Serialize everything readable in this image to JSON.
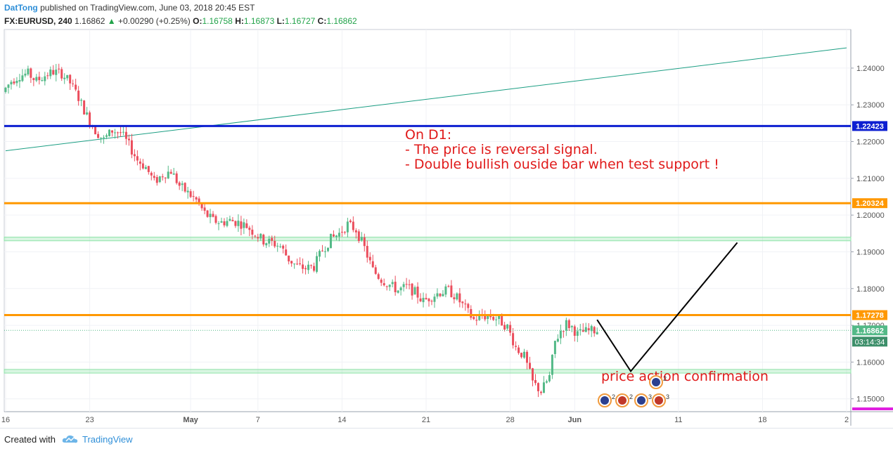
{
  "header": {
    "author": "DatTong",
    "published": "published on TradingView.com, June 03, 2018 20:45 EST",
    "symbol": "FX:EURUSD, 240",
    "price": "1.16862",
    "change": "+0.00290 (+0.25%)",
    "open_label": "O:",
    "open": "1.16758",
    "high_label": "H:",
    "high": "1.16873",
    "low_label": "L:",
    "low": "1.16727",
    "close_label": "C:",
    "close": "1.16862"
  },
  "footer": {
    "created_with": "Created with",
    "brand": "TradingView"
  },
  "colors": {
    "up": "#53b987",
    "down": "#eb4d5c",
    "level_blue": "#0d1fd1",
    "level_orange": "#ff9800",
    "zone_green": "#8fe3a8",
    "trendline": "#1b9e83",
    "annotation": "#e01a1a",
    "projection": "#000000"
  },
  "chart_data": {
    "type": "candlestick",
    "symbol": "FX:EURUSD",
    "timeframe": "240",
    "ylim": [
      1.1465,
      1.2505
    ],
    "y_ticks": [
      1.24,
      1.23,
      1.22,
      1.21,
      1.2,
      1.19,
      1.18,
      1.17,
      1.16,
      1.15
    ],
    "y_tick_labels": [
      "1.24000",
      "1.23000",
      "1.22000",
      "1.21000",
      "1.20000",
      "1.19000",
      "1.18000",
      "1.17000",
      "1.16000",
      "1.15000"
    ],
    "x_ticks": [
      {
        "label": "16",
        "bar": 0
      },
      {
        "label": "23",
        "bar": 30
      },
      {
        "label": "May",
        "bar": 66
      },
      {
        "label": "7",
        "bar": 90
      },
      {
        "label": "14",
        "bar": 120
      },
      {
        "label": "21",
        "bar": 150
      },
      {
        "label": "28",
        "bar": 180
      },
      {
        "label": "Jun",
        "bar": 203
      },
      {
        "label": "11",
        "bar": 240
      },
      {
        "label": "18",
        "bar": 270
      },
      {
        "label": "2",
        "bar": 300
      }
    ],
    "bars_in_view": 302,
    "candle_count": 212,
    "path_points": [
      [
        0,
        1.2335
      ],
      [
        3,
        1.2365
      ],
      [
        6,
        1.238
      ],
      [
        9,
        1.2385
      ],
      [
        12,
        1.2365
      ],
      [
        15,
        1.238
      ],
      [
        18,
        1.239
      ],
      [
        21,
        1.2385
      ],
      [
        24,
        1.236
      ],
      [
        27,
        1.232
      ],
      [
        30,
        1.227
      ],
      [
        33,
        1.223
      ],
      [
        36,
        1.2205
      ],
      [
        39,
        1.223
      ],
      [
        42,
        1.2225
      ],
      [
        45,
        1.219
      ],
      [
        48,
        1.215
      ],
      [
        51,
        1.213
      ],
      [
        54,
        1.209
      ],
      [
        57,
        1.211
      ],
      [
        60,
        1.212
      ],
      [
        63,
        1.208
      ],
      [
        66,
        1.206
      ],
      [
        69,
        1.204
      ],
      [
        72,
        1.2005
      ],
      [
        75,
        1.1985
      ],
      [
        78,
        1.198
      ],
      [
        81,
        1.1985
      ],
      [
        84,
        1.198
      ],
      [
        87,
        1.197
      ],
      [
        90,
        1.195
      ],
      [
        93,
        1.193
      ],
      [
        96,
        1.1925
      ],
      [
        99,
        1.1915
      ],
      [
        102,
        1.188
      ],
      [
        105,
        1.186
      ],
      [
        108,
        1.1855
      ],
      [
        111,
        1.186
      ],
      [
        114,
        1.1905
      ],
      [
        117,
        1.1935
      ],
      [
        120,
        1.195
      ],
      [
        123,
        1.1975
      ],
      [
        126,
        1.196
      ],
      [
        129,
        1.191
      ],
      [
        132,
        1.185
      ],
      [
        135,
        1.1825
      ],
      [
        138,
        1.181
      ],
      [
        141,
        1.1795
      ],
      [
        144,
        1.1805
      ],
      [
        147,
        1.179
      ],
      [
        150,
        1.1765
      ],
      [
        153,
        1.178
      ],
      [
        156,
        1.179
      ],
      [
        159,
        1.1795
      ],
      [
        162,
        1.1775
      ],
      [
        165,
        1.1745
      ],
      [
        168,
        1.1715
      ],
      [
        171,
        1.1725
      ],
      [
        174,
        1.1725
      ],
      [
        177,
        1.1715
      ],
      [
        180,
        1.1695
      ],
      [
        183,
        1.164
      ],
      [
        186,
        1.1615
      ],
      [
        189,
        1.1545
      ],
      [
        192,
        1.152
      ],
      [
        195,
        1.156
      ],
      [
        197,
        1.1655
      ],
      [
        199,
        1.1685
      ],
      [
        201,
        1.1705
      ],
      [
        203,
        1.1695
      ],
      [
        205,
        1.1675
      ],
      [
        207,
        1.1682
      ],
      [
        211,
        1.1686
      ]
    ],
    "last_price": 1.16862,
    "countdown": "03:14:34",
    "horizontal_levels": [
      {
        "price": 1.22423,
        "label": "1.22423",
        "color": "#0d1fd1",
        "width": 3
      },
      {
        "price": 1.20324,
        "label": "1.20324",
        "color": "#ff9800",
        "width": 3
      },
      {
        "price": 1.17278,
        "label": "1.17278",
        "color": "#ff9800",
        "width": 3
      }
    ],
    "zones": [
      {
        "top": 1.194,
        "bottom": 1.193
      },
      {
        "top": 1.158,
        "bottom": 1.157
      }
    ],
    "trendline": {
      "start": [
        0,
        1.2175
      ],
      "end": [
        300,
        1.2455
      ]
    },
    "projection": [
      [
        211,
        1.1715
      ],
      [
        223,
        1.1575
      ],
      [
        261,
        1.1925
      ]
    ],
    "annotations": [
      "On D1:",
      "- The price is reversal signal.",
      "- Double bullish ouside bar when test support !",
      "price action confirmation"
    ],
    "events": [
      {
        "label": "2"
      },
      {
        "label": "2"
      },
      {
        "label": "3"
      },
      {
        "label": "3"
      },
      {
        "label": "2"
      }
    ]
  }
}
